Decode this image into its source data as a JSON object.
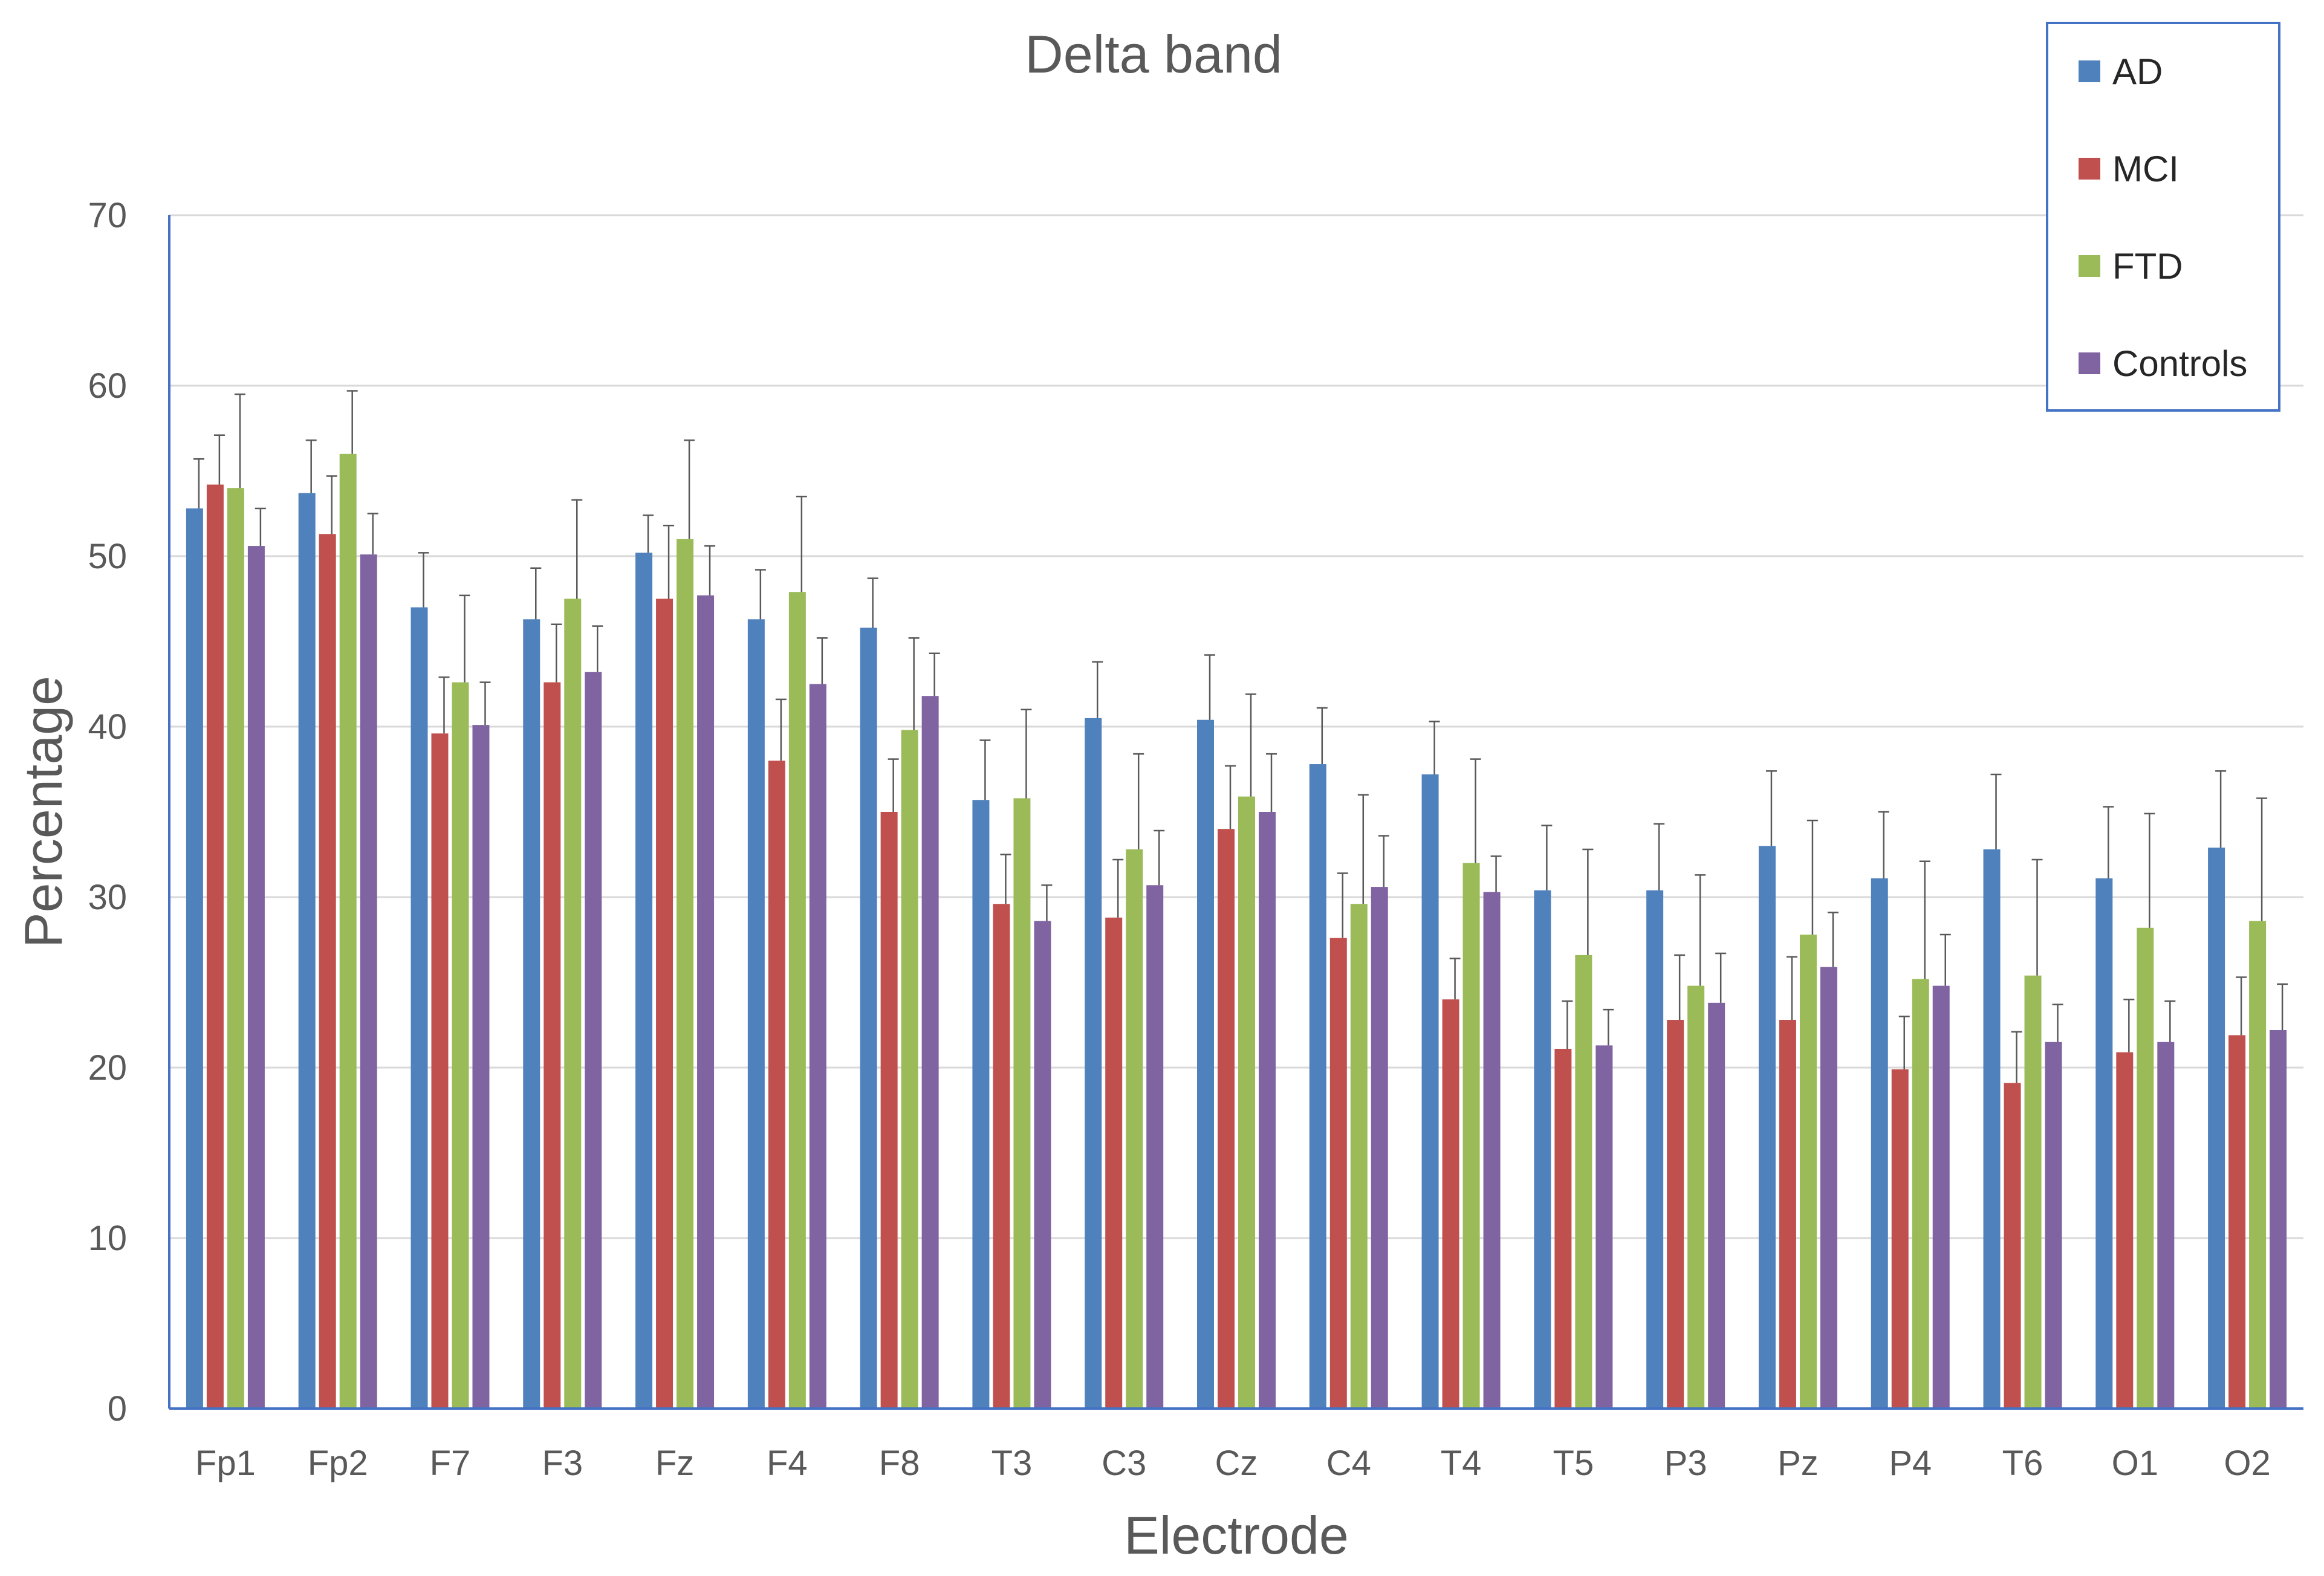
{
  "chart_data": {
    "type": "bar",
    "title": "Delta band",
    "xlabel": "Electrode",
    "ylabel": "Percentage",
    "ylim": [
      0,
      70
    ],
    "yticks": [
      0,
      10,
      20,
      30,
      40,
      50,
      60,
      70
    ],
    "grid": true,
    "legend_position": "top-right",
    "categories": [
      "Fp1",
      "Fp2",
      "F7",
      "F3",
      "Fz",
      "F4",
      "F8",
      "T3",
      "C3",
      "Cz",
      "C4",
      "T4",
      "T5",
      "P3",
      "Pz",
      "P4",
      "T6",
      "O1",
      "O2"
    ],
    "series": [
      {
        "name": "AD",
        "color": "#4f81bd",
        "values": [
          52.8,
          53.7,
          47.0,
          46.3,
          50.2,
          46.3,
          45.8,
          35.7,
          40.5,
          40.4,
          37.8,
          37.2,
          30.4,
          30.4,
          33.0,
          31.1,
          32.8,
          31.1,
          32.9
        ],
        "errors": [
          2.9,
          3.1,
          3.2,
          3.0,
          2.2,
          2.9,
          2.9,
          3.5,
          3.3,
          3.8,
          3.3,
          3.1,
          3.8,
          3.9,
          4.4,
          3.9,
          4.4,
          4.2,
          4.5
        ]
      },
      {
        "name": "MCI",
        "color": "#c0504d",
        "values": [
          54.2,
          51.3,
          39.6,
          42.6,
          47.5,
          38.0,
          35.0,
          29.6,
          28.8,
          34.0,
          27.6,
          24.0,
          21.1,
          22.8,
          22.8,
          19.9,
          19.1,
          20.9,
          21.9
        ],
        "errors": [
          2.9,
          3.4,
          3.3,
          3.4,
          4.3,
          3.6,
          3.1,
          2.9,
          3.4,
          3.7,
          3.8,
          2.4,
          2.8,
          3.8,
          3.7,
          3.1,
          3.0,
          3.1,
          3.4
        ]
      },
      {
        "name": "FTD",
        "color": "#9bbb59",
        "values": [
          54.0,
          56.0,
          42.6,
          47.5,
          51.0,
          47.9,
          39.8,
          35.8,
          32.8,
          35.9,
          29.6,
          32.0,
          26.6,
          24.8,
          27.8,
          25.2,
          25.4,
          28.2,
          28.6
        ],
        "errors": [
          5.5,
          3.7,
          5.1,
          5.8,
          5.8,
          5.6,
          5.4,
          5.2,
          5.6,
          6.0,
          6.4,
          6.1,
          6.2,
          6.5,
          6.7,
          6.9,
          6.8,
          6.7,
          7.2
        ]
      },
      {
        "name": "Controls",
        "color": "#8064a2",
        "values": [
          50.6,
          50.1,
          40.1,
          43.2,
          47.7,
          42.5,
          41.8,
          28.6,
          30.7,
          35.0,
          30.6,
          30.3,
          21.3,
          23.8,
          25.9,
          24.8,
          21.5,
          21.5,
          22.2
        ],
        "errors": [
          2.2,
          2.4,
          2.5,
          2.7,
          2.9,
          2.7,
          2.5,
          2.1,
          3.2,
          3.4,
          3.0,
          2.1,
          2.1,
          2.9,
          3.2,
          3.0,
          2.2,
          2.4,
          2.7
        ]
      }
    ]
  }
}
